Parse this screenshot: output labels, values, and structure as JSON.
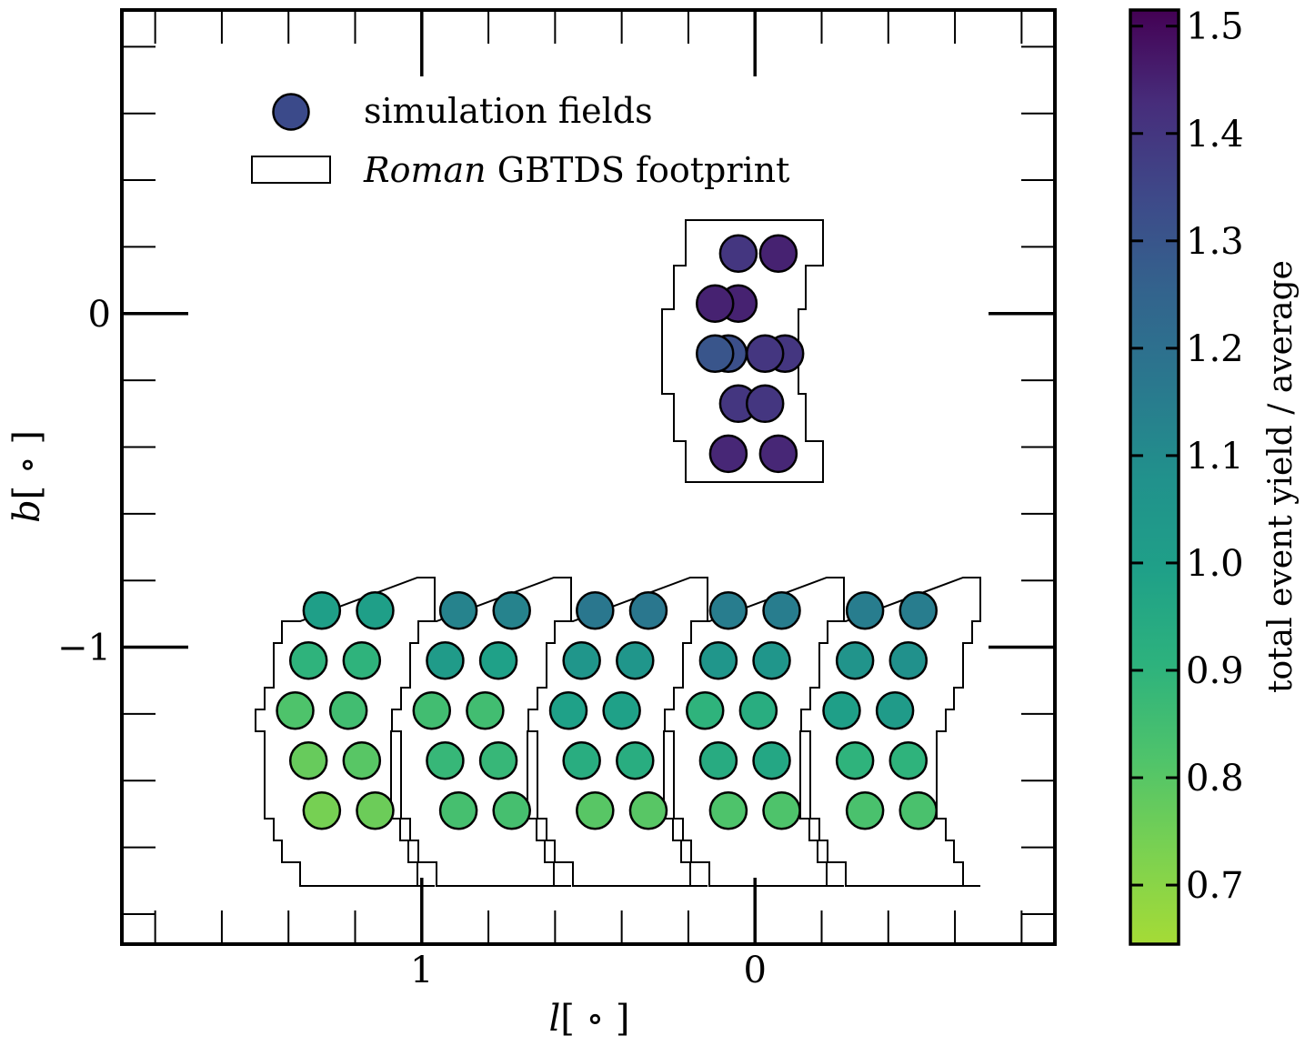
{
  "chart_data": {
    "type": "scatter",
    "xlabel_main": "l",
    "xlabel_unit": "[ ∘ ]",
    "ylabel_main": "b",
    "ylabel_unit": "[ ∘ ]",
    "x_ticks": [
      {
        "value": 1,
        "label": "1"
      },
      {
        "value": 0,
        "label": "0"
      }
    ],
    "y_ticks": [
      {
        "value": 0,
        "label": "0"
      },
      {
        "value": -1,
        "label": "−1"
      }
    ],
    "xlim": [
      1.9,
      -0.9
    ],
    "ylim": [
      -1.89,
      0.91
    ],
    "x_inverted": true,
    "grid": false,
    "legend": {
      "placement": "upper-left",
      "entries": [
        {
          "kind": "marker",
          "label": "simulation fields",
          "color": "#3a4c8a"
        },
        {
          "kind": "rect",
          "label_italic": "Roman",
          "label_rest": " GBTDS footprint"
        }
      ]
    },
    "colorbar": {
      "label": "total event yield / average",
      "range": [
        0.645,
        1.515
      ],
      "colormap": "viridis",
      "ticks": [
        "0.7",
        "0.8",
        "0.9",
        "1.0",
        "1.1",
        "1.2",
        "1.3",
        "1.4",
        "1.5"
      ]
    },
    "footprint_outline_color": "#000000",
    "points": [
      {
        "l": -0.09,
        "b": -0.12,
        "yield": 1.4
      },
      {
        "l": -0.07,
        "b": 0.18,
        "yield": 1.45
      },
      {
        "l": 0.05,
        "b": 0.18,
        "yield": 1.4
      },
      {
        "l": 0.05,
        "b": 0.03,
        "yield": 1.45
      },
      {
        "l": -0.03,
        "b": -0.12,
        "yield": 1.4
      },
      {
        "l": 0.08,
        "b": -0.12,
        "yield": 1.32
      },
      {
        "l": 0.12,
        "b": -0.12,
        "yield": 1.3
      },
      {
        "l": 0.05,
        "b": -0.27,
        "yield": 1.4
      },
      {
        "l": -0.03,
        "b": -0.27,
        "yield": 1.4
      },
      {
        "l": 0.08,
        "b": -0.42,
        "yield": 1.44
      },
      {
        "l": -0.07,
        "b": -0.42,
        "yield": 1.44
      },
      {
        "l": 0.12,
        "b": 0.03,
        "yield": 1.45
      },
      {
        "l": 1.3,
        "b": -0.89,
        "yield": 1.0
      },
      {
        "l": 1.14,
        "b": -0.89,
        "yield": 1.0
      },
      {
        "l": 1.34,
        "b": -1.04,
        "yield": 0.9
      },
      {
        "l": 1.18,
        "b": -1.04,
        "yield": 0.9
      },
      {
        "l": 1.38,
        "b": -1.19,
        "yield": 0.82
      },
      {
        "l": 1.22,
        "b": -1.19,
        "yield": 0.85
      },
      {
        "l": 1.34,
        "b": -1.34,
        "yield": 0.77
      },
      {
        "l": 1.18,
        "b": -1.34,
        "yield": 0.8
      },
      {
        "l": 1.3,
        "b": -1.49,
        "yield": 0.74
      },
      {
        "l": 1.14,
        "b": -1.49,
        "yield": 0.76
      },
      {
        "l": 0.89,
        "b": -0.89,
        "yield": 1.13
      },
      {
        "l": 0.73,
        "b": -0.89,
        "yield": 1.13
      },
      {
        "l": 0.93,
        "b": -1.04,
        "yield": 1.02
      },
      {
        "l": 0.77,
        "b": -1.04,
        "yield": 0.99
      },
      {
        "l": 0.97,
        "b": -1.19,
        "yield": 0.85
      },
      {
        "l": 0.81,
        "b": -1.19,
        "yield": 0.85
      },
      {
        "l": 0.93,
        "b": -1.34,
        "yield": 0.88
      },
      {
        "l": 0.77,
        "b": -1.34,
        "yield": 0.88
      },
      {
        "l": 0.89,
        "b": -1.49,
        "yield": 0.84
      },
      {
        "l": 0.73,
        "b": -1.49,
        "yield": 0.84
      },
      {
        "l": 0.48,
        "b": -0.89,
        "yield": 1.17
      },
      {
        "l": 0.32,
        "b": -0.89,
        "yield": 1.17
      },
      {
        "l": 0.52,
        "b": -1.04,
        "yield": 1.05
      },
      {
        "l": 0.36,
        "b": -1.04,
        "yield": 1.05
      },
      {
        "l": 0.56,
        "b": -1.19,
        "yield": 0.99
      },
      {
        "l": 0.4,
        "b": -1.19,
        "yield": 0.99
      },
      {
        "l": 0.52,
        "b": -1.34,
        "yield": 0.93
      },
      {
        "l": 0.36,
        "b": -1.34,
        "yield": 0.93
      },
      {
        "l": 0.48,
        "b": -1.49,
        "yield": 0.8
      },
      {
        "l": 0.32,
        "b": -1.49,
        "yield": 0.8
      },
      {
        "l": 0.08,
        "b": -0.89,
        "yield": 1.15
      },
      {
        "l": -0.08,
        "b": -0.89,
        "yield": 1.15
      },
      {
        "l": 0.11,
        "b": -1.04,
        "yield": 1.05
      },
      {
        "l": -0.05,
        "b": -1.04,
        "yield": 1.05
      },
      {
        "l": 0.15,
        "b": -1.19,
        "yield": 0.9
      },
      {
        "l": -0.01,
        "b": -1.19,
        "yield": 0.93
      },
      {
        "l": 0.11,
        "b": -1.34,
        "yield": 0.94
      },
      {
        "l": -0.05,
        "b": -1.34,
        "yield": 0.96
      },
      {
        "l": 0.08,
        "b": -1.49,
        "yield": 0.82
      },
      {
        "l": -0.08,
        "b": -1.49,
        "yield": 0.82
      },
      {
        "l": -0.33,
        "b": -0.89,
        "yield": 1.15
      },
      {
        "l": -0.49,
        "b": -0.89,
        "yield": 1.15
      },
      {
        "l": -0.3,
        "b": -1.04,
        "yield": 1.06
      },
      {
        "l": -0.46,
        "b": -1.04,
        "yield": 1.08
      },
      {
        "l": -0.26,
        "b": -1.19,
        "yield": 1.0
      },
      {
        "l": -0.42,
        "b": -1.19,
        "yield": 1.02
      },
      {
        "l": -0.3,
        "b": -1.34,
        "yield": 0.9
      },
      {
        "l": -0.46,
        "b": -1.34,
        "yield": 0.9
      },
      {
        "l": -0.33,
        "b": -1.49,
        "yield": 0.83
      },
      {
        "l": -0.49,
        "b": -1.49,
        "yield": 0.83
      }
    ]
  }
}
